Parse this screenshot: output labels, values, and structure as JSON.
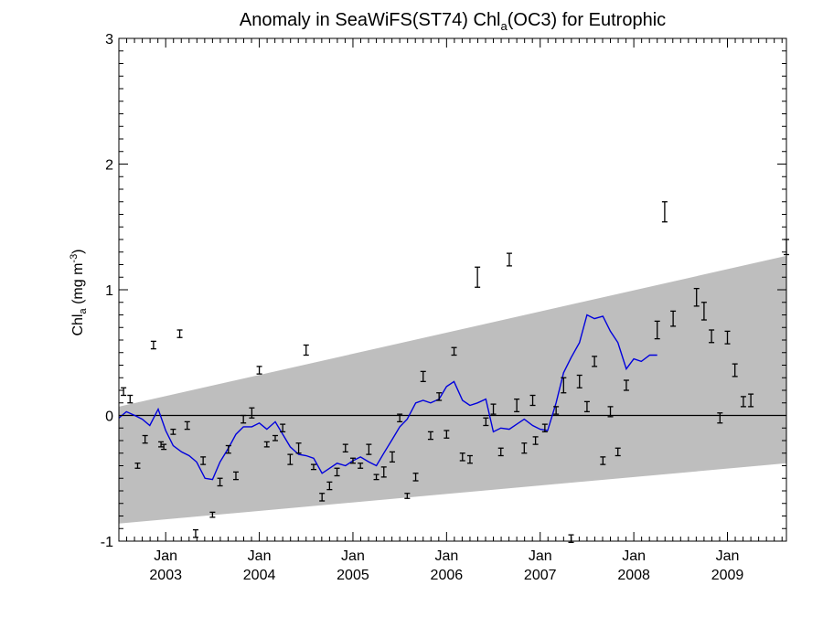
{
  "chart_data": {
    "type": "scatter",
    "title": {
      "prefix": "Anomaly in SeaWiFS(ST74) Chl",
      "subscript": "a",
      "suffix": "(OC3) for Eutrophic"
    },
    "ylabel": {
      "base": "Chl",
      "subscript": "a",
      "units_open": " (mg m",
      "superscript": "-3",
      "units_close": ")"
    },
    "xlim": [
      2002.5,
      2009.63
    ],
    "ylim": [
      -1.0,
      3.0
    ],
    "y_ticks": [
      {
        "value": -1,
        "label": "-1"
      },
      {
        "value": 0,
        "label": "0"
      },
      {
        "value": 1,
        "label": "1"
      },
      {
        "value": 2,
        "label": "2"
      },
      {
        "value": 3,
        "label": "3"
      }
    ],
    "x_ticks": [
      {
        "value": 2003.0,
        "month": "Jan",
        "year": "2003"
      },
      {
        "value": 2004.0,
        "month": "Jan",
        "year": "2004"
      },
      {
        "value": 2005.0,
        "month": "Jan",
        "year": "2005"
      },
      {
        "value": 2006.0,
        "month": "Jan",
        "year": "2006"
      },
      {
        "value": 2007.0,
        "month": "Jan",
        "year": "2007"
      },
      {
        "value": 2008.0,
        "month": "Jan",
        "year": "2008"
      },
      {
        "value": 2009.0,
        "month": "Jan",
        "year": "2009"
      }
    ],
    "confidence_band": {
      "color": "#bebebe",
      "lower": [
        [
          2002.5,
          -0.86
        ],
        [
          2009.63,
          -0.38
        ]
      ],
      "upper": [
        [
          2002.5,
          0.07
        ],
        [
          2009.63,
          1.27
        ]
      ]
    },
    "zero_line": 0,
    "series": [
      {
        "kind": "errorbar",
        "color": "#000000",
        "points": [
          {
            "x": 2002.55,
            "y": 0.19,
            "err": 0.03
          },
          {
            "x": 2002.62,
            "y": 0.13,
            "err": 0.03
          },
          {
            "x": 2002.7,
            "y": -0.4,
            "err": 0.02
          },
          {
            "x": 2002.78,
            "y": -0.19,
            "err": 0.03
          },
          {
            "x": 2002.87,
            "y": 0.56,
            "err": 0.03
          },
          {
            "x": 2002.95,
            "y": -0.23,
            "err": 0.02
          },
          {
            "x": 2002.98,
            "y": -0.25,
            "err": 0.02
          },
          {
            "x": 2003.08,
            "y": -0.13,
            "err": 0.02
          },
          {
            "x": 2003.15,
            "y": 0.65,
            "err": 0.03
          },
          {
            "x": 2003.23,
            "y": -0.08,
            "err": 0.03
          },
          {
            "x": 2003.32,
            "y": -0.94,
            "err": 0.03
          },
          {
            "x": 2003.4,
            "y": -0.36,
            "err": 0.03
          },
          {
            "x": 2003.5,
            "y": -0.79,
            "err": 0.02
          },
          {
            "x": 2003.58,
            "y": -0.53,
            "err": 0.03
          },
          {
            "x": 2003.67,
            "y": -0.27,
            "err": 0.03
          },
          {
            "x": 2003.75,
            "y": -0.48,
            "err": 0.03
          },
          {
            "x": 2003.83,
            "y": -0.03,
            "err": 0.03
          },
          {
            "x": 2003.92,
            "y": 0.02,
            "err": 0.04
          },
          {
            "x": 2004.0,
            "y": 0.36,
            "err": 0.03
          },
          {
            "x": 2004.08,
            "y": -0.23,
            "err": 0.02
          },
          {
            "x": 2004.17,
            "y": -0.18,
            "err": 0.02
          },
          {
            "x": 2004.25,
            "y": -0.1,
            "err": 0.03
          },
          {
            "x": 2004.33,
            "y": -0.35,
            "err": 0.04
          },
          {
            "x": 2004.42,
            "y": -0.26,
            "err": 0.04
          },
          {
            "x": 2004.5,
            "y": 0.52,
            "err": 0.04
          },
          {
            "x": 2004.58,
            "y": -0.41,
            "err": 0.02
          },
          {
            "x": 2004.67,
            "y": -0.65,
            "err": 0.03
          },
          {
            "x": 2004.75,
            "y": -0.56,
            "err": 0.03
          },
          {
            "x": 2004.83,
            "y": -0.45,
            "err": 0.03
          },
          {
            "x": 2004.92,
            "y": -0.26,
            "err": 0.03
          },
          {
            "x": 2005.0,
            "y": -0.36,
            "err": 0.02
          },
          {
            "x": 2005.08,
            "y": -0.4,
            "err": 0.02
          },
          {
            "x": 2005.17,
            "y": -0.27,
            "err": 0.04
          },
          {
            "x": 2005.25,
            "y": -0.49,
            "err": 0.02
          },
          {
            "x": 2005.33,
            "y": -0.45,
            "err": 0.04
          },
          {
            "x": 2005.42,
            "y": -0.33,
            "err": 0.04
          },
          {
            "x": 2005.5,
            "y": -0.02,
            "err": 0.03
          },
          {
            "x": 2005.58,
            "y": -0.64,
            "err": 0.02
          },
          {
            "x": 2005.67,
            "y": -0.49,
            "err": 0.03
          },
          {
            "x": 2005.75,
            "y": 0.31,
            "err": 0.04
          },
          {
            "x": 2005.83,
            "y": -0.16,
            "err": 0.03
          },
          {
            "x": 2005.92,
            "y": 0.15,
            "err": 0.03
          },
          {
            "x": 2006.0,
            "y": -0.15,
            "err": 0.03
          },
          {
            "x": 2006.08,
            "y": 0.51,
            "err": 0.03
          },
          {
            "x": 2006.17,
            "y": -0.33,
            "err": 0.03
          },
          {
            "x": 2006.25,
            "y": -0.35,
            "err": 0.03
          },
          {
            "x": 2006.33,
            "y": 1.1,
            "err": 0.08
          },
          {
            "x": 2006.42,
            "y": -0.05,
            "err": 0.03
          },
          {
            "x": 2006.5,
            "y": 0.05,
            "err": 0.04
          },
          {
            "x": 2006.58,
            "y": -0.29,
            "err": 0.03
          },
          {
            "x": 2006.67,
            "y": 1.24,
            "err": 0.05
          },
          {
            "x": 2006.75,
            "y": 0.08,
            "err": 0.05
          },
          {
            "x": 2006.83,
            "y": -0.26,
            "err": 0.04
          },
          {
            "x": 2006.92,
            "y": 0.12,
            "err": 0.04
          },
          {
            "x": 2006.95,
            "y": -0.2,
            "err": 0.03
          },
          {
            "x": 2007.05,
            "y": -0.1,
            "err": 0.03
          },
          {
            "x": 2007.17,
            "y": 0.04,
            "err": 0.03
          },
          {
            "x": 2007.25,
            "y": 0.24,
            "err": 0.06
          },
          {
            "x": 2007.33,
            "y": -0.98,
            "err": 0.03
          },
          {
            "x": 2007.42,
            "y": 0.27,
            "err": 0.05
          },
          {
            "x": 2007.5,
            "y": 0.07,
            "err": 0.04
          },
          {
            "x": 2007.58,
            "y": 0.43,
            "err": 0.04
          },
          {
            "x": 2007.67,
            "y": -0.36,
            "err": 0.03
          },
          {
            "x": 2007.75,
            "y": 0.03,
            "err": 0.04
          },
          {
            "x": 2007.83,
            "y": -0.29,
            "err": 0.03
          },
          {
            "x": 2007.92,
            "y": 0.24,
            "err": 0.04
          },
          {
            "x": 2008.33,
            "y": 1.62,
            "err": 0.08
          },
          {
            "x": 2008.25,
            "y": 0.68,
            "err": 0.07
          },
          {
            "x": 2008.42,
            "y": 0.77,
            "err": 0.06
          },
          {
            "x": 2008.67,
            "y": 0.94,
            "err": 0.07
          },
          {
            "x": 2008.75,
            "y": 0.83,
            "err": 0.07
          },
          {
            "x": 2008.83,
            "y": 0.63,
            "err": 0.05
          },
          {
            "x": 2008.92,
            "y": -0.02,
            "err": 0.04
          },
          {
            "x": 2009.0,
            "y": 0.62,
            "err": 0.05
          },
          {
            "x": 2009.08,
            "y": 0.36,
            "err": 0.05
          },
          {
            "x": 2009.17,
            "y": 0.11,
            "err": 0.04
          },
          {
            "x": 2009.25,
            "y": 0.12,
            "err": 0.05
          },
          {
            "x": 2009.63,
            "y": 1.34,
            "err": 0.06
          }
        ]
      },
      {
        "kind": "line",
        "color": "#0000dd",
        "points": [
          [
            2002.5,
            -0.02
          ],
          [
            2002.58,
            0.03
          ],
          [
            2002.67,
            0.0
          ],
          [
            2002.75,
            -0.03
          ],
          [
            2002.83,
            -0.08
          ],
          [
            2002.92,
            0.05
          ],
          [
            2003.0,
            -0.12
          ],
          [
            2003.08,
            -0.24
          ],
          [
            2003.17,
            -0.29
          ],
          [
            2003.25,
            -0.32
          ],
          [
            2003.33,
            -0.37
          ],
          [
            2003.42,
            -0.5
          ],
          [
            2003.5,
            -0.51
          ],
          [
            2003.58,
            -0.37
          ],
          [
            2003.67,
            -0.26
          ],
          [
            2003.75,
            -0.15
          ],
          [
            2003.83,
            -0.09
          ],
          [
            2003.92,
            -0.09
          ],
          [
            2004.0,
            -0.06
          ],
          [
            2004.08,
            -0.11
          ],
          [
            2004.17,
            -0.05
          ],
          [
            2004.25,
            -0.15
          ],
          [
            2004.33,
            -0.25
          ],
          [
            2004.42,
            -0.31
          ],
          [
            2004.5,
            -0.32
          ],
          [
            2004.58,
            -0.34
          ],
          [
            2004.67,
            -0.46
          ],
          [
            2004.75,
            -0.42
          ],
          [
            2004.83,
            -0.38
          ],
          [
            2004.92,
            -0.4
          ],
          [
            2005.0,
            -0.36
          ],
          [
            2005.08,
            -0.33
          ],
          [
            2005.17,
            -0.37
          ],
          [
            2005.25,
            -0.4
          ],
          [
            2005.33,
            -0.3
          ],
          [
            2005.42,
            -0.19
          ],
          [
            2005.5,
            -0.09
          ],
          [
            2005.58,
            -0.03
          ],
          [
            2005.67,
            0.1
          ],
          [
            2005.75,
            0.12
          ],
          [
            2005.83,
            0.1
          ],
          [
            2005.92,
            0.13
          ],
          [
            2006.0,
            0.23
          ],
          [
            2006.08,
            0.27
          ],
          [
            2006.17,
            0.12
          ],
          [
            2006.25,
            0.08
          ],
          [
            2006.33,
            0.1
          ],
          [
            2006.42,
            0.13
          ],
          [
            2006.5,
            -0.13
          ],
          [
            2006.58,
            -0.1
          ],
          [
            2006.67,
            -0.11
          ],
          [
            2006.75,
            -0.07
          ],
          [
            2006.83,
            -0.03
          ],
          [
            2006.92,
            -0.08
          ],
          [
            2007.0,
            -0.11
          ],
          [
            2007.08,
            -0.12
          ],
          [
            2007.17,
            0.1
          ],
          [
            2007.25,
            0.34
          ],
          [
            2007.33,
            0.46
          ],
          [
            2007.42,
            0.58
          ],
          [
            2007.5,
            0.8
          ],
          [
            2007.58,
            0.77
          ],
          [
            2007.67,
            0.79
          ],
          [
            2007.75,
            0.67
          ],
          [
            2007.83,
            0.58
          ],
          [
            2007.92,
            0.37
          ],
          [
            2008.0,
            0.45
          ],
          [
            2008.08,
            0.43
          ],
          [
            2008.17,
            0.48
          ],
          [
            2008.25,
            0.48
          ]
        ]
      }
    ],
    "grid": false,
    "legend": "none"
  }
}
